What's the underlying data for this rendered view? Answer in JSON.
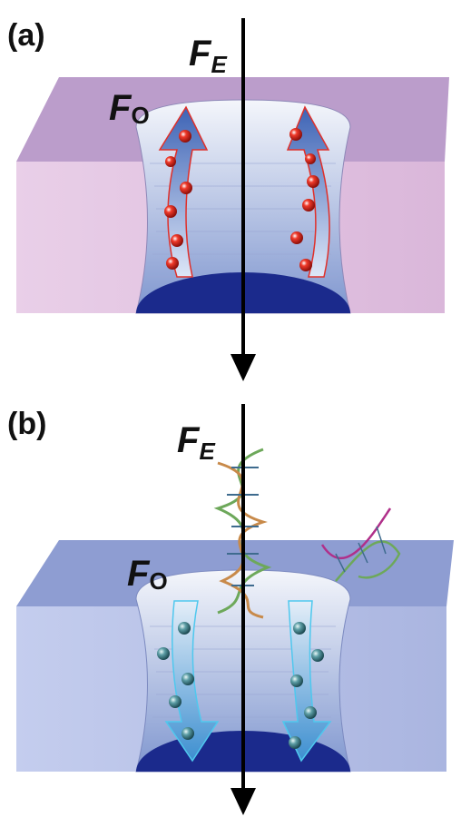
{
  "panels": [
    {
      "label": "(a)",
      "electric_force": {
        "symbol": "F",
        "subscript": "E"
      },
      "osmotic_force": {
        "symbol": "F",
        "subscript": "O"
      }
    },
    {
      "label": "(b)",
      "electric_force": {
        "symbol": "F",
        "subscript": "E"
      },
      "osmotic_force": {
        "symbol": "F",
        "subscript": "O"
      }
    }
  ]
}
